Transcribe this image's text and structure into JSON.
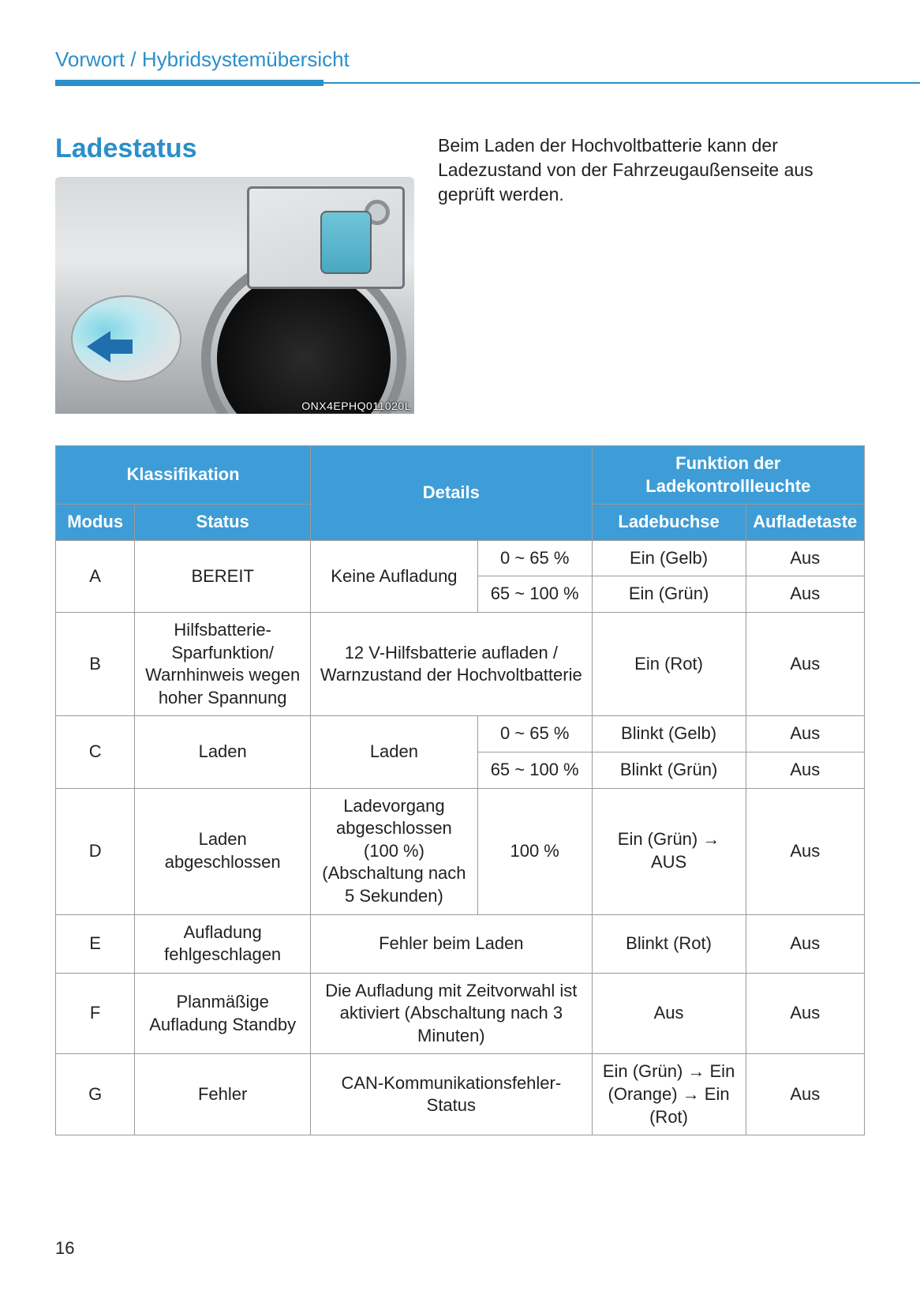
{
  "colors": {
    "accent": "#2b8fc9",
    "table_header_bg": "#3e9dd6",
    "table_header_fg": "#ffffff",
    "border": "#9a9a9a",
    "text": "#222222",
    "page_bg": "#ffffff"
  },
  "breadcrumb": "Vorwort / Hybridsystemübersicht",
  "section_title": "Ladestatus",
  "intro_text": "Beim Laden der Hochvoltbatterie kann der Ladezustand von der Fahrzeugaußenseite aus geprüft werden.",
  "image_code": "ONX4EPHQ011020L",
  "page_number": "16",
  "table": {
    "header": {
      "klassifikation": "Klassifikation",
      "modus": "Modus",
      "status": "Status",
      "details": "Details",
      "funktion": "Funktion der Ladekontrollleuchte",
      "ladebuchse": "Ladebuchse",
      "aufladetaste": "Auflade­taste"
    },
    "rows": {
      "A": {
        "modus": "A",
        "status": "BEREIT",
        "details_main": "Keine Aufladung",
        "sub1": {
          "range": "0 ~ 65 %",
          "buchse": "Ein (Gelb)",
          "taste": "Aus"
        },
        "sub2": {
          "range": "65 ~ 100 %",
          "buchse": "Ein (Grün)",
          "taste": "Aus"
        }
      },
      "B": {
        "modus": "B",
        "status": "Hilfsbatterie-Sparfunktion/ Warnhinweis wegen hoher Spannung",
        "details": "12 V-Hilfsbatterie aufladen / Warnzustand der Hochvoltbatterie",
        "buchse": "Ein (Rot)",
        "taste": "Aus"
      },
      "C": {
        "modus": "C",
        "status": "Laden",
        "details_main": "Laden",
        "sub1": {
          "range": "0 ~ 65 %",
          "buchse": "Blinkt (Gelb)",
          "taste": "Aus"
        },
        "sub2": {
          "range": "65 ~ 100 %",
          "buchse": "Blinkt (Grün)",
          "taste": "Aus"
        }
      },
      "D": {
        "modus": "D",
        "status": "Laden abgeschlossen",
        "details_main": "Ladevorgang abgeschlossen (100 %) (Abschaltung nach 5 Sekunden)",
        "range": "100 %",
        "buchse": "Ein (Grün) → AUS",
        "taste": "Aus"
      },
      "E": {
        "modus": "E",
        "status": "Aufladung fehlgeschlagen",
        "details": "Fehler beim Laden",
        "buchse": "Blinkt (Rot)",
        "taste": "Aus"
      },
      "F": {
        "modus": "F",
        "status": "Planmäßige Aufladung Standby",
        "details": "Die Aufladung mit Zeitvorwahl ist aktiviert (Abschaltung nach 3 Minuten)",
        "buchse": "Aus",
        "taste": "Aus"
      },
      "G": {
        "modus": "G",
        "status": "Fehler",
        "details": "CAN-Kommunikationsfehler-Status",
        "buchse": "Ein (Grün) → Ein (Orange) → Ein (Rot)",
        "taste": "Aus"
      }
    }
  }
}
